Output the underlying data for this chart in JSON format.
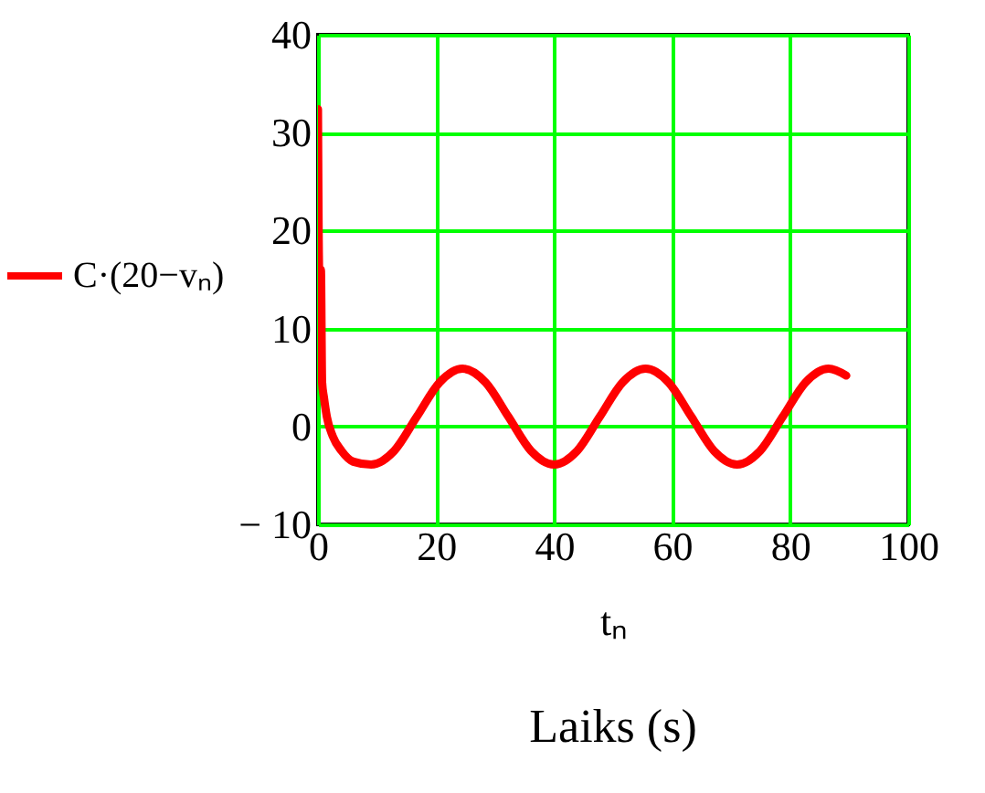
{
  "chart_data": {
    "type": "line",
    "xlabel": "tₙ",
    "annotations": [
      "Laiks (s)"
    ],
    "x": [
      0,
      0.2,
      0.5,
      0.7,
      1,
      1.5,
      2.5,
      4,
      6,
      9,
      12.9,
      16.75,
      20.6,
      24.5,
      28.4,
      32.25,
      36.1,
      40,
      43.9,
      47.75,
      51.6,
      55.5,
      59.4,
      63.25,
      67.1,
      71,
      74.9,
      78.75,
      82.6,
      86.5,
      89.5
    ],
    "series": [
      {
        "name": "C·(20−vₙ)",
        "color": "#ff0000",
        "values": [
          32.4,
          16,
          16,
          4.5,
          3,
          1,
          -1,
          -2.5,
          -3.6,
          -3.9,
          -2.5,
          1,
          4.5,
          5.9,
          4.5,
          1,
          -2.5,
          -3.9,
          -2.5,
          1,
          4.5,
          5.9,
          4.5,
          1,
          -2.5,
          -3.9,
          -2.5,
          1,
          4.5,
          5.9,
          5.2
        ]
      }
    ],
    "xlim": [
      0,
      100
    ],
    "xticks": [
      0,
      20,
      40,
      60,
      80,
      100
    ],
    "ylim": [
      -10,
      40
    ],
    "yticks": [
      {
        "value": -10,
        "label": "− 10"
      },
      0,
      10,
      20,
      30,
      40
    ],
    "grid": true,
    "legend": "left",
    "line_style": "solid"
  }
}
